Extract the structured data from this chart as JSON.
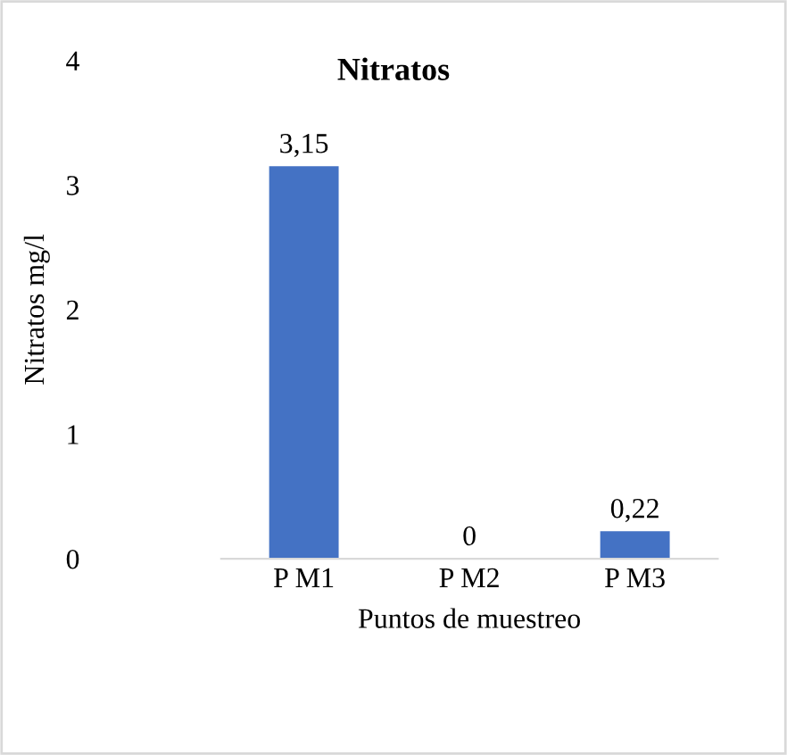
{
  "chart_data": {
    "type": "bar",
    "title": "Nitratos",
    "xlabel": "Puntos de muestreo",
    "ylabel": "Nitratos mg/l",
    "categories": [
      "P M1",
      "P M2",
      "P M3"
    ],
    "values": [
      3.15,
      0,
      0.22
    ],
    "value_labels": [
      "3,15",
      "0",
      "0,22"
    ],
    "color": "#4472c4",
    "ylim": [
      0,
      4
    ],
    "yticks": [
      0,
      1,
      2,
      3,
      4
    ],
    "grid": false
  }
}
